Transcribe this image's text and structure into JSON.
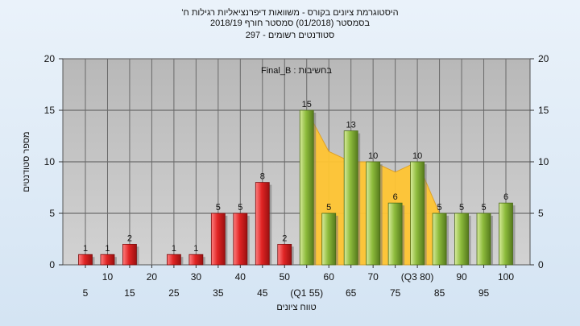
{
  "chart_data": {
    "type": "bar",
    "title_lines": [
      "היסטוגרמת ציונים בקורס - משוואות דיפרנציאליות רגילות ח'",
      "בסמסטר  (01/2018)  סמסטר חורף 2018/19",
      "סטודנטים רשומים - 297"
    ],
    "annotation": "בחשיבות : Final_B",
    "xlabel": "טווח ציונים",
    "ylabel": "מספר סטודנטים",
    "ylim": [
      0,
      20
    ],
    "yticks": [
      "0",
      "5",
      "10",
      "15",
      "20"
    ],
    "categories": [
      5,
      10,
      15,
      20,
      25,
      30,
      35,
      40,
      45,
      50,
      55,
      60,
      65,
      70,
      75,
      80,
      85,
      90,
      95,
      100
    ],
    "x_tick_labels": [
      "5",
      "10",
      "15",
      "20",
      "25",
      "30",
      "35",
      "40",
      "45",
      "50",
      "(Q1 55)",
      "60",
      "65",
      "70",
      "75",
      "(Q3 80)",
      "85",
      "90",
      "95",
      "100"
    ],
    "values": [
      1,
      1,
      2,
      0,
      1,
      1,
      5,
      5,
      8,
      2,
      15,
      5,
      13,
      10,
      6,
      10,
      5,
      5,
      5,
      6
    ],
    "data_labels": [
      "1",
      "1",
      "2",
      "",
      "1",
      "1",
      "5",
      "5",
      "8",
      "2",
      "15",
      "5",
      "13",
      "10",
      "6",
      "10",
      "5",
      "5",
      "5",
      "6"
    ],
    "area_curve": {
      "x": [
        55,
        60,
        65,
        70,
        75,
        80,
        85
      ],
      "y": [
        15,
        11,
        10,
        10,
        9,
        10,
        5
      ]
    },
    "pass_threshold": 55,
    "colors": {
      "fail": "#e02424",
      "pass": "#8dbb3c",
      "area": "#ffc533",
      "plot_bg": "#c0c0c0"
    },
    "grid": true
  }
}
